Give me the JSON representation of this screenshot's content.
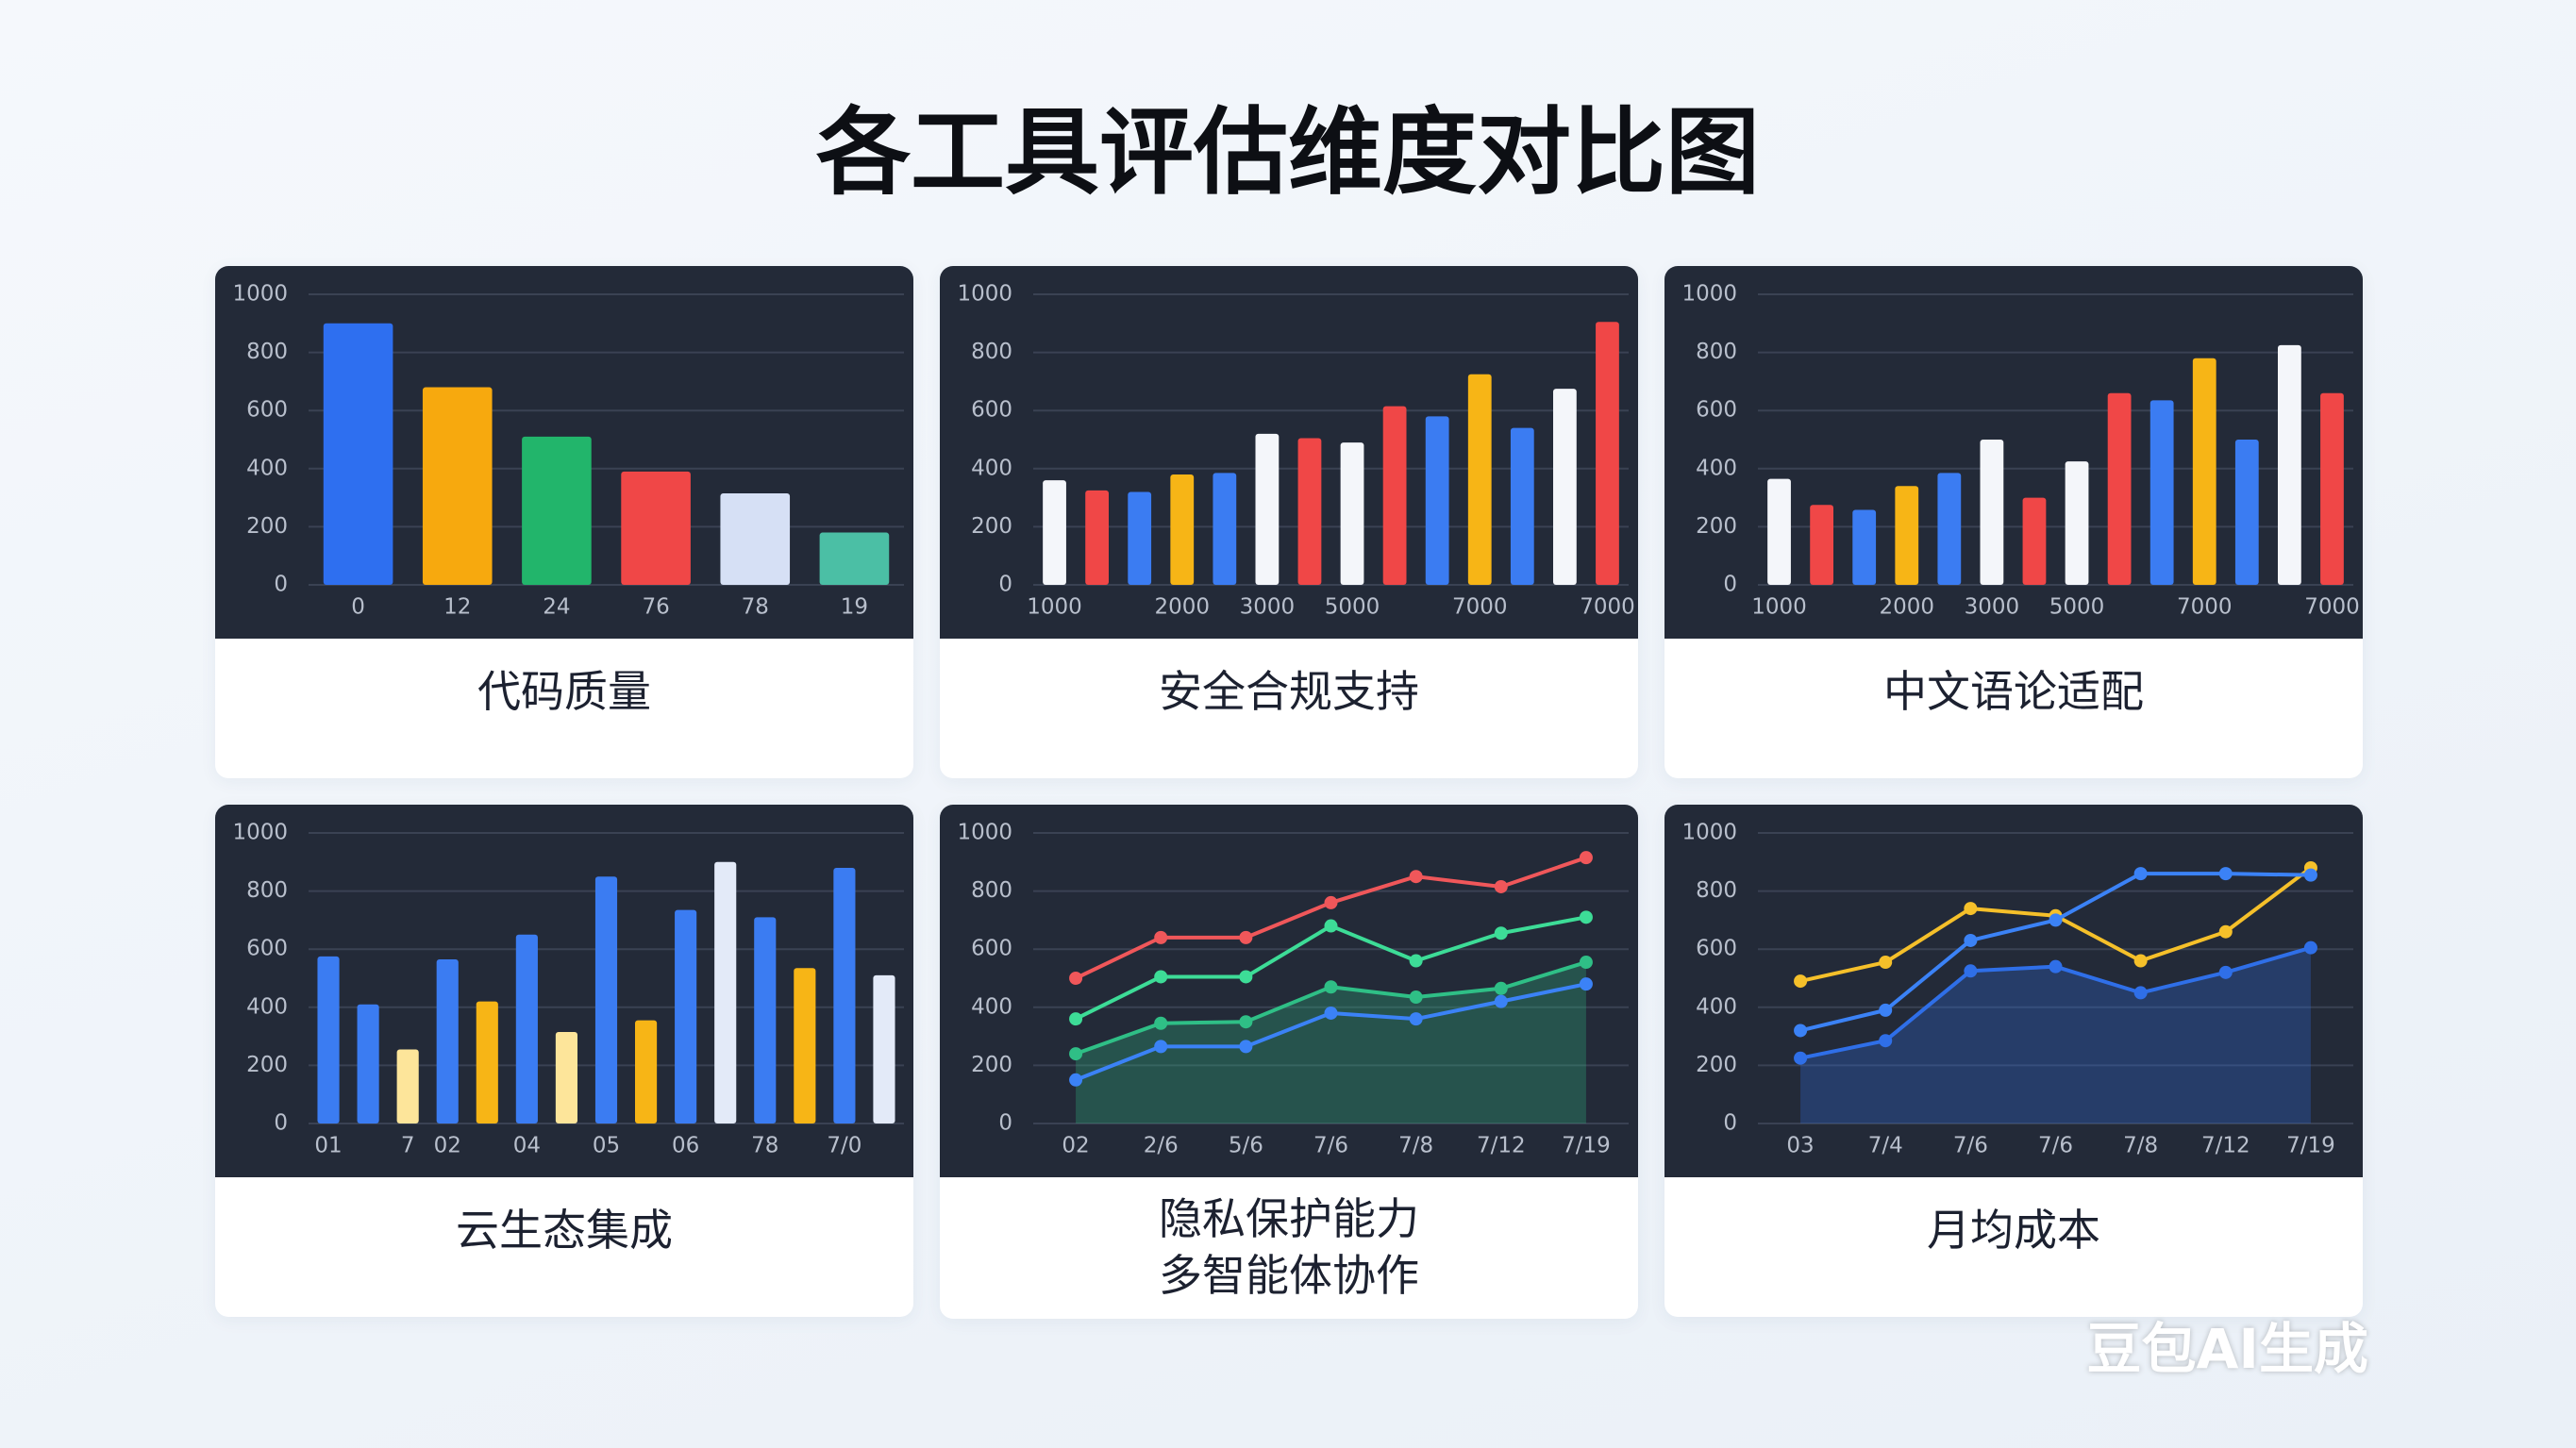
{
  "title": "各工具评估维度对比图",
  "watermark": "豆包AI生成",
  "chart_data": [
    {
      "type": "bar",
      "title": "代码质量",
      "categories": [
        "0",
        "12",
        "24",
        "76",
        "78",
        "19"
      ],
      "values": [
        900,
        680,
        510,
        390,
        315,
        180
      ],
      "colors": [
        "#2e6ff0",
        "#f7a90e",
        "#22b56b",
        "#f04747",
        "#d6e0f5",
        "#4bbfa5"
      ],
      "ylim": [
        0,
        1000
      ],
      "yticks": [
        0,
        200,
        400,
        600,
        800,
        1000
      ],
      "grid": true
    },
    {
      "type": "bar",
      "title": "安全合规支持",
      "categories": [
        "1000",
        null,
        null,
        "2000",
        null,
        "3000",
        null,
        "5000",
        null,
        null,
        "7000",
        null,
        null,
        "7000"
      ],
      "values": [
        360,
        325,
        320,
        380,
        385,
        520,
        505,
        490,
        615,
        580,
        725,
        540,
        675,
        905
      ],
      "colors": [
        "#f4f6fa",
        "#f04747",
        "#3b7cf2",
        "#f7b516",
        "#3b7cf2",
        "#f4f6fa",
        "#f04747",
        "#f4f6fa",
        "#f04747",
        "#3b7cf2",
        "#f7b516",
        "#3b7cf2",
        "#f4f6fa",
        "#f04747"
      ],
      "ylim": [
        0,
        1000
      ],
      "yticks": [
        0,
        200,
        400,
        600,
        800,
        1000
      ],
      "grid": true
    },
    {
      "type": "bar",
      "title": "中文语论适配",
      "categories": [
        "1000",
        null,
        null,
        "2000",
        null,
        "3000",
        null,
        "5000",
        null,
        null,
        "7000",
        null,
        null,
        "7000"
      ],
      "values": [
        365,
        275,
        258,
        340,
        385,
        500,
        300,
        425,
        660,
        635,
        780,
        500,
        825,
        660
      ],
      "colors": [
        "#f4f6fa",
        "#f04747",
        "#3b7cf2",
        "#f7b516",
        "#3b7cf2",
        "#f4f6fa",
        "#f04747",
        "#f4f6fa",
        "#f04747",
        "#3b7cf2",
        "#f7b516",
        "#3b7cf2",
        "#f4f6fa",
        "#f04747"
      ],
      "ylim": [
        0,
        1000
      ],
      "yticks": [
        0,
        200,
        400,
        600,
        800,
        1000
      ],
      "grid": true
    },
    {
      "type": "bar",
      "title": "云生态集成",
      "categories": [
        "01",
        null,
        "7",
        "02",
        null,
        "04",
        null,
        "05",
        null,
        "06",
        null,
        "78",
        null,
        "7/0",
        null
      ],
      "values": [
        575,
        410,
        255,
        565,
        420,
        650,
        315,
        850,
        355,
        735,
        900,
        710,
        535,
        880,
        510
      ],
      "colors": [
        "#3b7cf2",
        "#3b7cf2",
        "#fde59a",
        "#3b7cf2",
        "#f7b516",
        "#3b7cf2",
        "#fde59a",
        "#3b7cf2",
        "#f7b516",
        "#3b7cf2",
        "#e3eaf8",
        "#3b7cf2",
        "#f7b516",
        "#3b7cf2",
        "#e3eaf8"
      ],
      "ylim": [
        0,
        1000
      ],
      "yticks": [
        0,
        200,
        400,
        600,
        800,
        1000
      ],
      "grid": true
    },
    {
      "type": "line",
      "title": "隐私保护能力",
      "subtitle": "多智能体协作",
      "categories": [
        "02",
        "2/6",
        "5/6",
        "7/6",
        "7/8",
        "7/12",
        "7/19"
      ],
      "series": [
        {
          "color": "#f0575a",
          "values": [
            500,
            640,
            640,
            760,
            850,
            815,
            915
          ]
        },
        {
          "color": "#3ddc97",
          "values": [
            360,
            505,
            505,
            680,
            560,
            655,
            710
          ]
        },
        {
          "color": "#2fbf86",
          "values": [
            240,
            345,
            350,
            470,
            435,
            465,
            555
          ],
          "area": true
        },
        {
          "color": "#3b82f6",
          "values": [
            150,
            265,
            265,
            380,
            360,
            420,
            480
          ]
        }
      ],
      "ylim": [
        0,
        1000
      ],
      "yticks": [
        0,
        200,
        400,
        600,
        800,
        1000
      ],
      "grid": true
    },
    {
      "type": "line",
      "title": "月均成本",
      "categories": [
        "03",
        "7/4",
        "7/6",
        "7/6",
        "7/8",
        "7/12",
        "7/19"
      ],
      "series": [
        {
          "color": "#f5c02a",
          "values": [
            490,
            555,
            740,
            715,
            560,
            660,
            880
          ]
        },
        {
          "color": "#3b82f6",
          "values": [
            320,
            390,
            630,
            700,
            860,
            860,
            855
          ]
        },
        {
          "color": "#2f6fe8",
          "values": [
            225,
            285,
            525,
            540,
            450,
            520,
            605
          ],
          "area": true
        }
      ],
      "ylim": [
        0,
        1000
      ],
      "yticks": [
        0,
        200,
        400,
        600,
        800,
        1000
      ],
      "grid": true
    }
  ]
}
